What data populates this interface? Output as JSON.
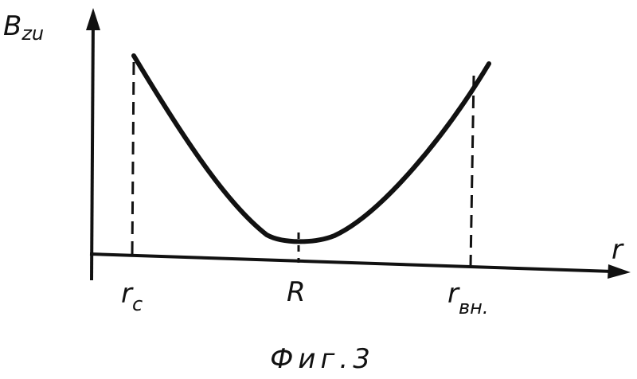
{
  "axes": {
    "y_label": {
      "main": "B",
      "sub": "zu"
    },
    "x_label": "r"
  },
  "ticks": [
    {
      "main": "r",
      "sub": "c"
    },
    {
      "main": "R"
    },
    {
      "main": "r",
      "sub": "вн."
    }
  ],
  "caption": "Фиг.3"
}
